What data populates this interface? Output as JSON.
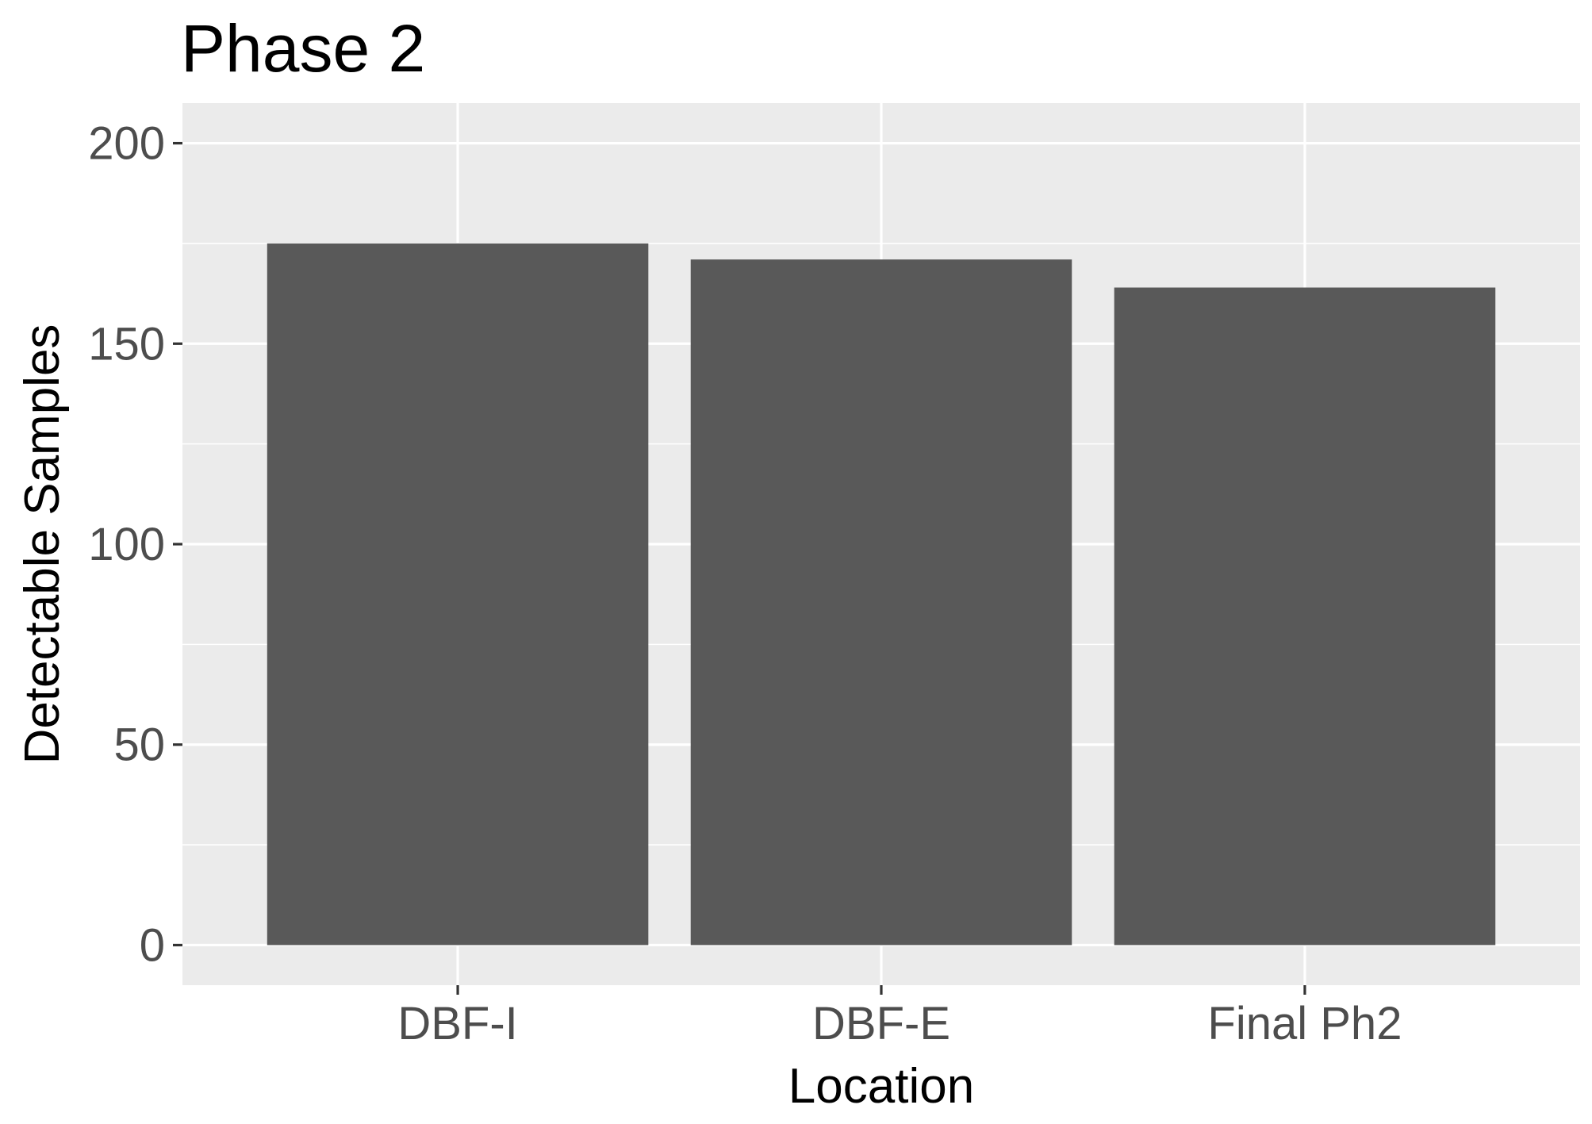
{
  "chart_data": {
    "type": "bar",
    "title": "Phase 2",
    "xlabel": "Location",
    "ylabel": "Detectable Samples",
    "categories": [
      "DBF-I",
      "DBF-E",
      "Final Ph2"
    ],
    "values": [
      175,
      171,
      164
    ],
    "ylim": [
      -10,
      210
    ],
    "yticks": [
      0,
      50,
      100,
      150,
      200
    ],
    "ytick_labels": [
      "0",
      "50",
      "100",
      "150",
      "200"
    ],
    "grid": true,
    "legend": "none",
    "colors": {
      "bar": "#595959",
      "panel_background": "#ebebeb",
      "grid": "#ffffff",
      "tick_text": "#4d4d4d",
      "tick_mark": "#333333"
    }
  }
}
